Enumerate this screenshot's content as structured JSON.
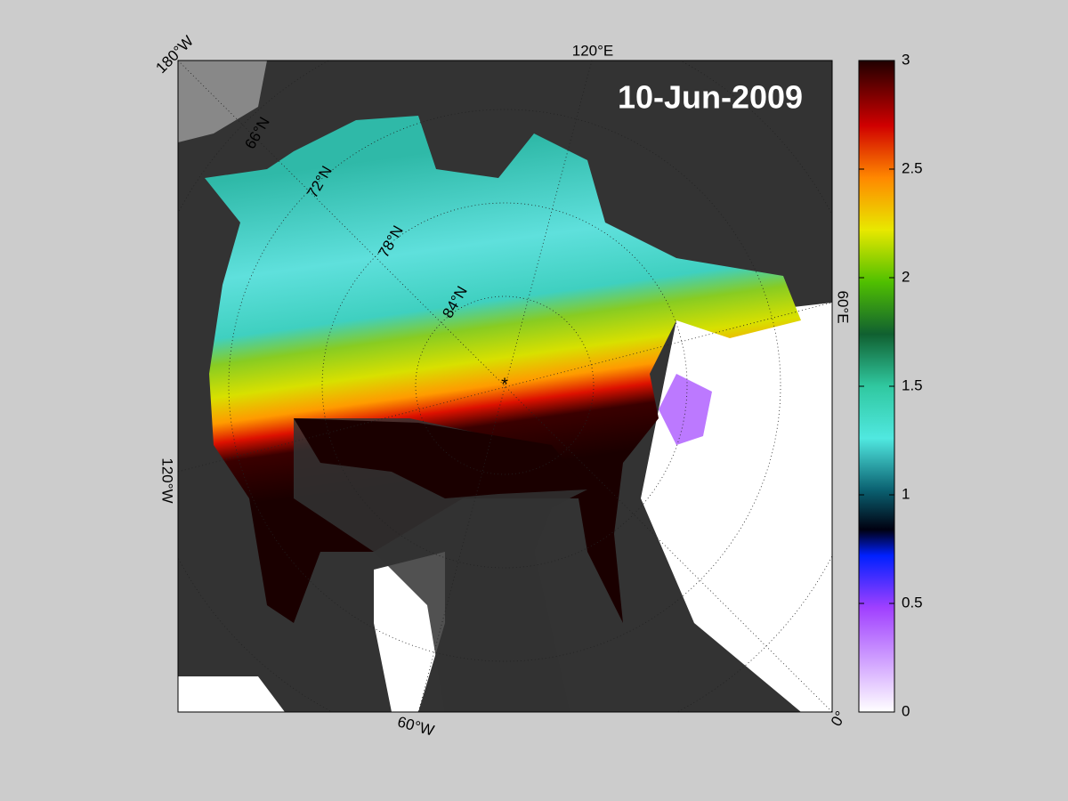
{
  "title": "10-Jun-2009",
  "map": {
    "longitude_labels": [
      "180°W",
      "120°E",
      "60°E",
      "0°",
      "60°W",
      "120°W"
    ],
    "latitude_labels": [
      "66°N",
      "72°N",
      "78°N",
      "84°N"
    ]
  },
  "colorbar": {
    "lim": [
      0,
      3
    ],
    "ticks": [
      0,
      0.5,
      1,
      1.5,
      2,
      2.5,
      3
    ]
  }
}
